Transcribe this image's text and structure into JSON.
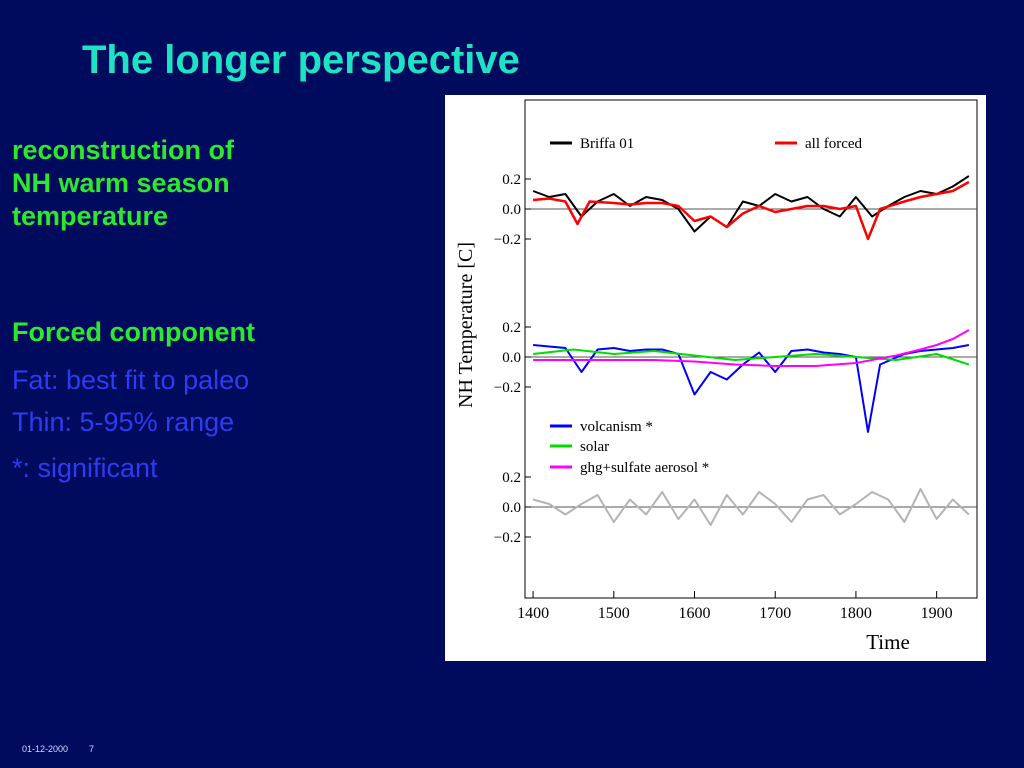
{
  "slide": {
    "title": "The longer perspective",
    "recon_lines": [
      " reconstruction of",
      "NH warm season",
      "temperature"
    ],
    "forced_heading": "Forced component",
    "fat_text": "Fat: best fit to paleo",
    "thin_text": "Thin: 5-95% range",
    "significant_text": "*: significant",
    "footer_date": "01-12-2000",
    "footer_page": "7"
  },
  "colors": {
    "background": "#000b5e",
    "title": "#1de3c4",
    "green_text": "#2ee82e",
    "blue_text": "#2b3cf2",
    "briffa": "#000000",
    "all_forced": "#ff0000",
    "volcanism": "#0000ff",
    "solar": "#00dd00",
    "ghg": "#ff00ff",
    "residual": "#b4b4b4"
  },
  "chart_data": {
    "type": "line",
    "xlabel": "Time",
    "ylabel": "NH Temperature [C]",
    "xlim": [
      1390,
      1950
    ],
    "x_ticks": [
      "1400",
      "1500",
      "1600",
      "1700",
      "1800",
      "1900"
    ],
    "y_ticks": [
      "0.2",
      "0.0",
      "−0.2"
    ],
    "grid": false,
    "panels": [
      {
        "name": "top",
        "ylim": [
          -0.2,
          0.2
        ],
        "legend": [
          "Briffa 01",
          "all forced"
        ],
        "series": [
          {
            "name": "Briffa 01",
            "color": "#000000",
            "x": [
              1400,
              1420,
              1440,
              1460,
              1480,
              1500,
              1520,
              1540,
              1560,
              1580,
              1600,
              1620,
              1640,
              1660,
              1680,
              1700,
              1720,
              1740,
              1760,
              1780,
              1800,
              1820,
              1840,
              1860,
              1880,
              1900,
              1920,
              1940
            ],
            "y": [
              0.12,
              0.08,
              0.1,
              -0.05,
              0.05,
              0.1,
              0.02,
              0.08,
              0.06,
              0.0,
              -0.15,
              -0.05,
              -0.12,
              0.05,
              0.02,
              0.1,
              0.05,
              0.08,
              0.0,
              -0.05,
              0.08,
              -0.05,
              0.02,
              0.08,
              0.12,
              0.1,
              0.15,
              0.22
            ]
          },
          {
            "name": "all forced",
            "color": "#ff0000",
            "x": [
              1400,
              1420,
              1440,
              1455,
              1470,
              1500,
              1520,
              1540,
              1560,
              1580,
              1600,
              1620,
              1640,
              1660,
              1680,
              1700,
              1720,
              1740,
              1760,
              1780,
              1800,
              1815,
              1830,
              1860,
              1880,
              1900,
              1920,
              1940
            ],
            "y": [
              0.06,
              0.07,
              0.05,
              -0.1,
              0.05,
              0.04,
              0.03,
              0.04,
              0.04,
              0.02,
              -0.08,
              -0.05,
              -0.12,
              -0.03,
              0.02,
              -0.02,
              0.0,
              0.02,
              0.02,
              0.0,
              0.02,
              -0.2,
              0.0,
              0.05,
              0.08,
              0.1,
              0.12,
              0.18
            ]
          }
        ]
      },
      {
        "name": "middle",
        "ylim": [
          -0.2,
          0.2
        ],
        "legend": [
          "volcanism *",
          "solar",
          "ghg+sulfate aerosol *"
        ],
        "series": [
          {
            "name": "volcanism *",
            "color": "#0000ff",
            "x": [
              1400,
              1420,
              1440,
              1460,
              1480,
              1500,
              1520,
              1540,
              1560,
              1580,
              1600,
              1620,
              1640,
              1660,
              1680,
              1700,
              1720,
              1740,
              1760,
              1780,
              1800,
              1815,
              1830,
              1860,
              1880,
              1900,
              1920,
              1940
            ],
            "y": [
              0.08,
              0.07,
              0.06,
              -0.1,
              0.05,
              0.06,
              0.04,
              0.05,
              0.05,
              0.02,
              -0.25,
              -0.1,
              -0.15,
              -0.05,
              0.03,
              -0.1,
              0.04,
              0.05,
              0.03,
              0.02,
              0.0,
              -0.5,
              -0.05,
              0.02,
              0.04,
              0.05,
              0.06,
              0.08
            ]
          },
          {
            "name": "solar",
            "color": "#00dd00",
            "x": [
              1400,
              1450,
              1500,
              1550,
              1600,
              1650,
              1700,
              1750,
              1800,
              1850,
              1900,
              1940
            ],
            "y": [
              0.02,
              0.05,
              0.02,
              0.04,
              0.01,
              -0.02,
              0.0,
              0.02,
              0.0,
              -0.02,
              0.02,
              -0.05
            ]
          },
          {
            "name": "ghg+sulfate aerosol *",
            "color": "#ff00ff",
            "x": [
              1400,
              1450,
              1500,
              1550,
              1600,
              1650,
              1700,
              1750,
              1800,
              1850,
              1880,
              1900,
              1920,
              1940
            ],
            "y": [
              -0.02,
              -0.02,
              -0.02,
              -0.02,
              -0.03,
              -0.05,
              -0.06,
              -0.06,
              -0.04,
              0.01,
              0.05,
              0.08,
              0.12,
              0.18
            ]
          }
        ]
      },
      {
        "name": "bottom",
        "ylim": [
          -0.2,
          0.2
        ],
        "legend": [],
        "series": [
          {
            "name": "",
            "color": "#b4b4b4",
            "x": [
              1400,
              1420,
              1440,
              1460,
              1480,
              1500,
              1520,
              1540,
              1560,
              1580,
              1600,
              1620,
              1640,
              1660,
              1680,
              1700,
              1720,
              1740,
              1760,
              1780,
              1800,
              1820,
              1840,
              1860,
              1880,
              1900,
              1920,
              1940
            ],
            "y": [
              0.05,
              0.02,
              -0.05,
              0.02,
              0.08,
              -0.1,
              0.05,
              -0.05,
              0.1,
              -0.08,
              0.05,
              -0.12,
              0.08,
              -0.05,
              0.1,
              0.02,
              -0.1,
              0.05,
              0.08,
              -0.05,
              0.02,
              0.1,
              0.05,
              -0.1,
              0.12,
              -0.08,
              0.05,
              -0.05
            ]
          }
        ]
      }
    ]
  }
}
